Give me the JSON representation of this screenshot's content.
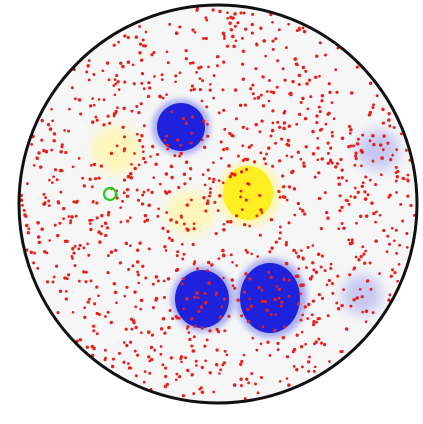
{
  "arena": {
    "shape": "circle",
    "fill_color": "#f6f6f6",
    "border_color": "#111111"
  },
  "food_pellets": {
    "color": "#e8201c",
    "shape": "dot",
    "count_visible": "many (~1100)"
  },
  "colors": {
    "player_cell": "#1e22dd",
    "player_cell_halo": "#a9acf0",
    "virus_bright": "#ffee22",
    "virus_pale": "#fff6b8",
    "ghost_cell": "#c6c8f2",
    "cursor_ring": "#22cc22"
  },
  "player_cells": [
    {
      "name": "player-cell-top"
    },
    {
      "name": "player-cell-bottom-left"
    },
    {
      "name": "player-cell-bottom-right"
    }
  ],
  "hazards": [
    {
      "name": "yellow-blob-bright",
      "kind": "bright"
    },
    {
      "name": "yellow-blob-pale-center",
      "kind": "pale"
    },
    {
      "name": "yellow-blob-pale-left",
      "kind": "pale"
    }
  ],
  "ghost_cells": [
    {
      "name": "ghost-cell-right-upper"
    },
    {
      "name": "ghost-cell-right-lower"
    }
  ],
  "cursor": {
    "icon": "target-ring-icon",
    "color": "#22cc22"
  }
}
